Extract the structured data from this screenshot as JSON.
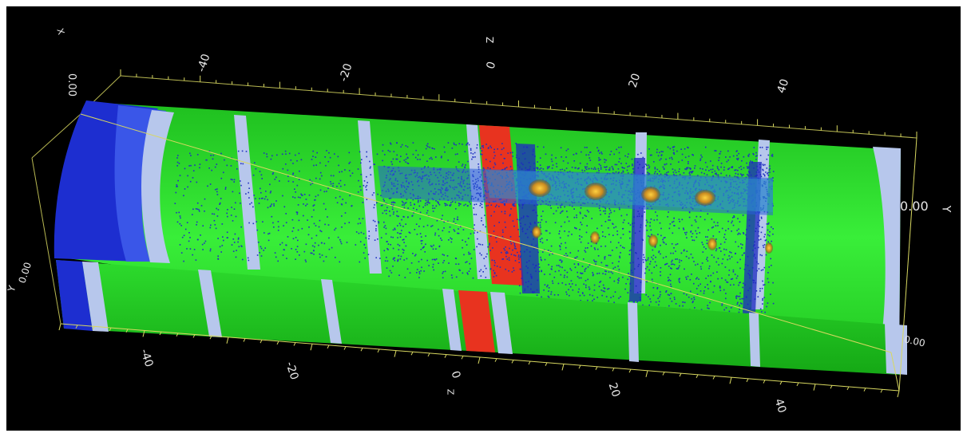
{
  "viewer": {
    "background": "#000000",
    "frame_color": "#e8e85a"
  },
  "axes": {
    "z_top_title": "Z",
    "z_bottom_title": "Z",
    "y_right_title": "Y",
    "y_left_title": "Y",
    "x_top_title": "X",
    "z_top_ticks": [
      "-40",
      "-20",
      "0",
      "20",
      "40"
    ],
    "z_bottom_ticks": [
      "-40",
      "-20",
      "0",
      "20",
      "40"
    ],
    "y_right_tick": "0.00",
    "y_left_tick": "0.00",
    "x_top_tick": "0.00",
    "x_right_tick": "0.00"
  },
  "colors": {
    "barrel": "#22dd22",
    "ring_light": "#b7c7ec",
    "ring_blue": "#2a3fd6",
    "ring_red": "#e8331f",
    "hits": "#2030c0",
    "clusters": "#d29a2a"
  }
}
